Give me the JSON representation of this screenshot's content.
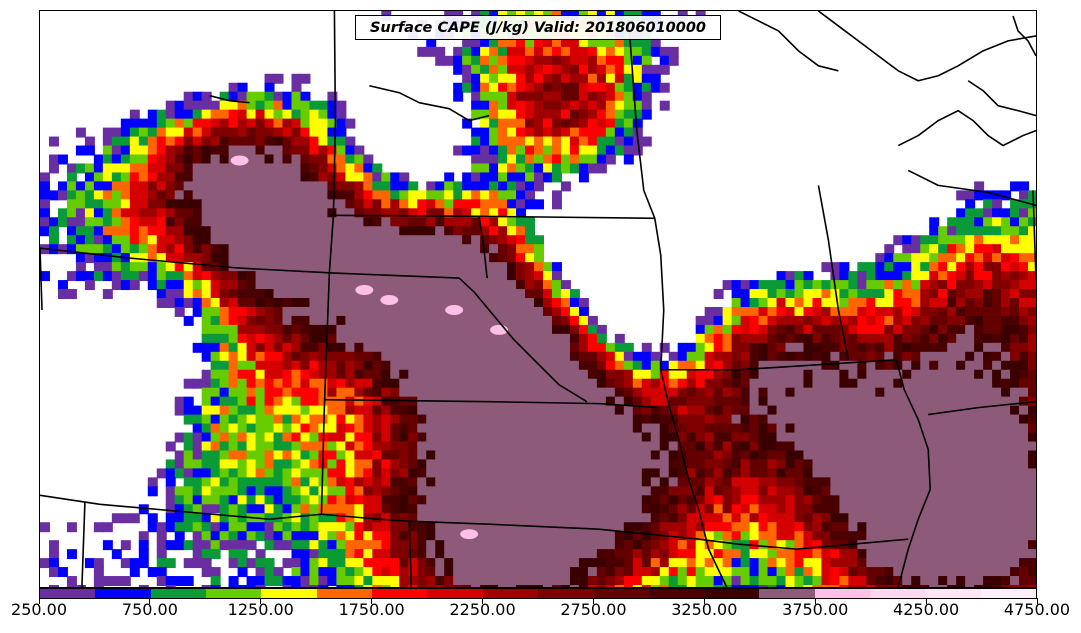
{
  "title": "Surface CAPE (J/kg) Valid: 201806010000",
  "colorbar": {
    "min": 250,
    "max": 4750,
    "step": 250,
    "colors": [
      "#6a2ea3",
      "#0000ff",
      "#0a9a38",
      "#66cc00",
      "#ffff00",
      "#ff6600",
      "#ff0000",
      "#d40000",
      "#a00000",
      "#800000",
      "#650000",
      "#4a0000",
      "#3a0000",
      "#8e5a7a",
      "#ffc0e8",
      "#ffd8f0",
      "#ffe6f6",
      "#fff0fa"
    ],
    "tick_labels": [
      "250.00",
      "750.00",
      "1250.00",
      "1750.00",
      "2250.00",
      "2750.00",
      "3250.00",
      "3750.00",
      "4250.00",
      "4750.00"
    ]
  }
}
